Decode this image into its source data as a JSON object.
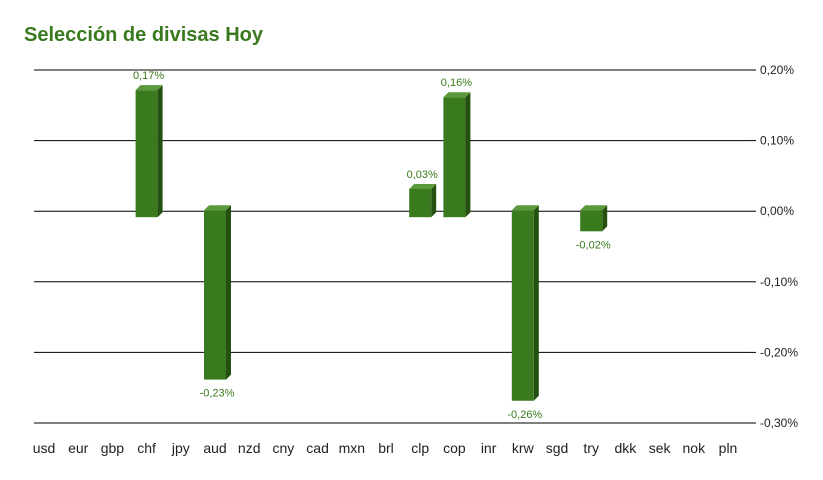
{
  "title": "Selección de divisas Hoy",
  "colors": {
    "bar_front": "#3a7a1e",
    "bar_top": "#5b9a3c",
    "bar_side": "#24510f",
    "title": "#3a7a1e",
    "label": "#3a7a1e",
    "grid": "#000000"
  },
  "chart_data": {
    "type": "bar",
    "title": "Selección de divisas Hoy",
    "xlabel": "",
    "ylabel": "",
    "ylim": [
      -0.3,
      0.2
    ],
    "y_axis_side": "right",
    "grid": true,
    "y_ticks": [
      0.2,
      0.1,
      0.0,
      -0.1,
      -0.2,
      -0.3
    ],
    "y_tick_labels": [
      "0,20%",
      "0,10%",
      "0,00%",
      "-0,10%",
      "-0,20%",
      "-0,30%"
    ],
    "categories": [
      "usd",
      "eur",
      "gbp",
      "chf",
      "jpy",
      "aud",
      "nzd",
      "cny",
      "cad",
      "mxn",
      "brl",
      "clp",
      "cop",
      "inr",
      "krw",
      "sgd",
      "try",
      "dkk",
      "sek",
      "nok",
      "pln"
    ],
    "values": [
      null,
      null,
      null,
      0.17,
      null,
      -0.23,
      null,
      null,
      null,
      null,
      null,
      0.03,
      0.16,
      null,
      -0.26,
      null,
      -0.02,
      null,
      null,
      null,
      null
    ],
    "data_labels": [
      "",
      "",
      "",
      "0,17%",
      "",
      "-0,23%",
      "",
      "",
      "",
      "",
      "",
      "0,03%",
      "0,16%",
      "",
      "-0,26%",
      "",
      "-0,02%",
      "",
      "",
      "",
      ""
    ]
  }
}
